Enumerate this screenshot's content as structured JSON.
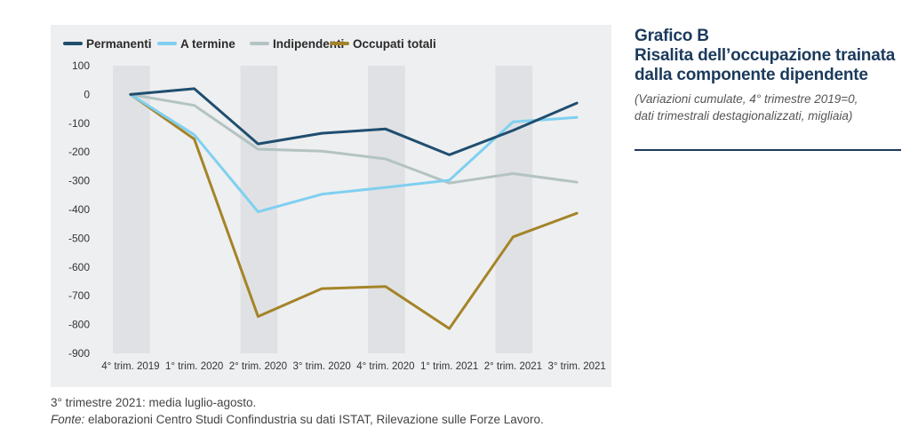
{
  "header": {
    "title_line1": "Grafico B",
    "title_line2": "Risalita dell’occupazione trainata",
    "title_line3": "dalla componente dipendente",
    "subtitle_line1": "(Variazioni cumulate, 4° trimestre 2019=0,",
    "subtitle_line2": "dati trimestrali destagionalizzati, migliaia)"
  },
  "notes": {
    "line1": "3° trimestre 2021: media luglio-agosto.",
    "source_label": "Fonte:",
    "source_text": " elaborazioni Centro Studi Confindustria su dati ISTAT, Rilevazione sulle Forze Lavoro."
  },
  "colors": {
    "panel_bg": "#eeeff1",
    "band": "#e0e1e4",
    "axis_text": "#333333"
  },
  "chart_data": {
    "type": "line",
    "categories": [
      "4° trim. 2019",
      "1° trim. 2020",
      "2° trim. 2020",
      "3° trim. 2020",
      "4° trim. 2020",
      "1° trim. 2021",
      "2° trim. 2021",
      "3° trim. 2021"
    ],
    "ylim": [
      -900,
      100
    ],
    "yticks": [
      100,
      0,
      -100,
      -200,
      -300,
      -400,
      -500,
      -600,
      -700,
      -800,
      -900
    ],
    "shaded_categories": [
      0,
      2,
      4,
      6
    ],
    "legend_position": "top",
    "grid": false,
    "series": [
      {
        "name": "Permanenti",
        "color": "#1f4e6f",
        "values": [
          0,
          20,
          -172,
          -135,
          -120,
          -210,
          -125,
          -30
        ]
      },
      {
        "name": "A termine",
        "color": "#7fd0f0",
        "values": [
          0,
          -140,
          -408,
          -347,
          -323,
          -298,
          -95,
          -80
        ]
      },
      {
        "name": "Indipendenti",
        "color": "#b3c3c2",
        "values": [
          0,
          -38,
          -190,
          -197,
          -224,
          -308,
          -275,
          -305
        ]
      },
      {
        "name": "Occupati totali",
        "color": "#a48428",
        "values": [
          0,
          -155,
          -772,
          -675,
          -668,
          -814,
          -495,
          -413
        ]
      }
    ]
  }
}
